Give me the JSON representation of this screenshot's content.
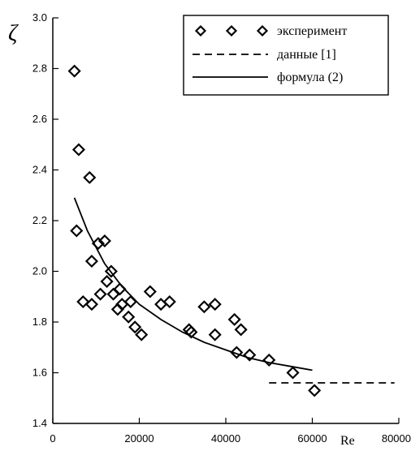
{
  "chart_data": {
    "type": "scatter",
    "title": "",
    "xlabel": "Re",
    "ylabel": "ζ",
    "xlim": [
      0,
      80000
    ],
    "ylim": [
      1.4,
      3.0
    ],
    "x_ticks": [
      0,
      20000,
      40000,
      60000,
      80000
    ],
    "x_tick_labels": [
      "0",
      "20000",
      "40000",
      "60000",
      "80000"
    ],
    "y_ticks": [
      1.4,
      1.6,
      1.8,
      2.0,
      2.2,
      2.4,
      2.6,
      2.8,
      3.0
    ],
    "y_tick_labels": [
      "1.4",
      "1.6",
      "1.8",
      "2.0",
      "2.2",
      "2.4",
      "2.6",
      "2.8",
      "3.0"
    ],
    "grid": false,
    "legend": {
      "position": "top-right",
      "entries": [
        {
          "series": "experiment",
          "label": "эксперимент",
          "style": "diamond-markers"
        },
        {
          "series": "data1",
          "label": "данные [1]",
          "style": "dashed-line"
        },
        {
          "series": "formula2",
          "label": "формула (2)",
          "style": "solid-line"
        }
      ]
    },
    "series": [
      {
        "name": "эксперимент",
        "kind": "markers",
        "marker": "diamond",
        "points": [
          {
            "x": 5000,
            "y": 2.79
          },
          {
            "x": 6000,
            "y": 2.48
          },
          {
            "x": 8500,
            "y": 2.37
          },
          {
            "x": 5500,
            "y": 2.16
          },
          {
            "x": 7000,
            "y": 1.88
          },
          {
            "x": 9000,
            "y": 1.87
          },
          {
            "x": 9000,
            "y": 2.04
          },
          {
            "x": 10500,
            "y": 2.11
          },
          {
            "x": 12000,
            "y": 2.12
          },
          {
            "x": 11000,
            "y": 1.91
          },
          {
            "x": 12500,
            "y": 1.96
          },
          {
            "x": 13500,
            "y": 2.0
          },
          {
            "x": 14000,
            "y": 1.91
          },
          {
            "x": 15000,
            "y": 1.85
          },
          {
            "x": 15500,
            "y": 1.93
          },
          {
            "x": 16000,
            "y": 1.87
          },
          {
            "x": 17500,
            "y": 1.82
          },
          {
            "x": 18000,
            "y": 1.88
          },
          {
            "x": 19000,
            "y": 1.78
          },
          {
            "x": 20500,
            "y": 1.75
          },
          {
            "x": 22500,
            "y": 1.92
          },
          {
            "x": 25000,
            "y": 1.87
          },
          {
            "x": 27000,
            "y": 1.88
          },
          {
            "x": 31500,
            "y": 1.77
          },
          {
            "x": 32000,
            "y": 1.76
          },
          {
            "x": 35000,
            "y": 1.86
          },
          {
            "x": 37500,
            "y": 1.87
          },
          {
            "x": 37500,
            "y": 1.75
          },
          {
            "x": 42000,
            "y": 1.81
          },
          {
            "x": 43500,
            "y": 1.77
          },
          {
            "x": 42500,
            "y": 1.68
          },
          {
            "x": 45500,
            "y": 1.67
          },
          {
            "x": 50000,
            "y": 1.65
          },
          {
            "x": 55500,
            "y": 1.6
          },
          {
            "x": 60500,
            "y": 1.53
          }
        ]
      },
      {
        "name": "данные [1]",
        "kind": "dashed-line",
        "points": [
          {
            "x": 50000,
            "y": 1.56
          },
          {
            "x": 79000,
            "y": 1.56
          }
        ]
      },
      {
        "name": "формула (2)",
        "kind": "solid-line",
        "points": [
          {
            "x": 5000,
            "y": 2.29
          },
          {
            "x": 8000,
            "y": 2.16
          },
          {
            "x": 12000,
            "y": 2.03
          },
          {
            "x": 16000,
            "y": 1.94
          },
          {
            "x": 20000,
            "y": 1.87
          },
          {
            "x": 25000,
            "y": 1.81
          },
          {
            "x": 30000,
            "y": 1.76
          },
          {
            "x": 35000,
            "y": 1.72
          },
          {
            "x": 40000,
            "y": 1.69
          },
          {
            "x": 45000,
            "y": 1.66
          },
          {
            "x": 50000,
            "y": 1.64
          },
          {
            "x": 55000,
            "y": 1.625
          },
          {
            "x": 60000,
            "y": 1.61
          }
        ]
      }
    ]
  }
}
